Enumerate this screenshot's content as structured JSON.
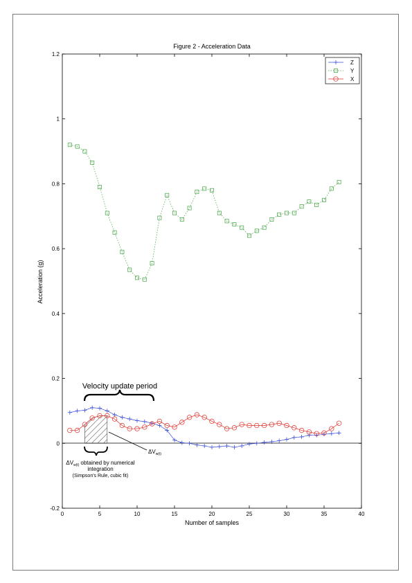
{
  "chart_data": {
    "type": "line",
    "title": "Figure 2 - Acceleration Data",
    "xlabel": "Number of samples",
    "ylabel": "Acceleration (g)",
    "xlim": [
      0,
      40
    ],
    "ylim": [
      -0.2,
      1.2
    ],
    "xticks": [
      0,
      5,
      10,
      15,
      20,
      25,
      30,
      35,
      40
    ],
    "yticks": [
      -0.2,
      0,
      0.2,
      0.4,
      0.6,
      0.8,
      1,
      1.2
    ],
    "xtick_labels": [
      "0",
      "5",
      "10",
      "15",
      "20",
      "25",
      "30",
      "35",
      "40"
    ],
    "ytick_labels": [
      "-0.2",
      "0",
      "0.2",
      "0.4",
      "0.6",
      "0.8",
      "1",
      "1.2"
    ],
    "grid": false,
    "legend_position": "top-right",
    "series": [
      {
        "name": "Z",
        "marker": "plus",
        "color": "#3b4fd8",
        "x": [
          1,
          2,
          3,
          4,
          5,
          6,
          7,
          8,
          9,
          10,
          11,
          12,
          13,
          14,
          15,
          16,
          17,
          18,
          19,
          20,
          21,
          22,
          23,
          24,
          25,
          26,
          27,
          28,
          29,
          30,
          31,
          32,
          33,
          34,
          35,
          36,
          37
        ],
        "y": [
          0.095,
          0.1,
          0.102,
          0.11,
          0.108,
          0.1,
          0.088,
          0.08,
          0.075,
          0.07,
          0.067,
          0.062,
          0.055,
          0.04,
          0.01,
          0.002,
          0.0,
          -0.005,
          -0.008,
          -0.012,
          -0.01,
          -0.008,
          -0.012,
          -0.008,
          -0.002,
          0.0,
          0.003,
          0.005,
          0.008,
          0.012,
          0.018,
          0.02,
          0.025,
          0.025,
          0.028,
          0.03,
          0.032
        ]
      },
      {
        "name": "Y",
        "marker": "square",
        "color": "#3da23d",
        "x": [
          1,
          2,
          3,
          4,
          5,
          6,
          7,
          8,
          9,
          10,
          11,
          12,
          13,
          14,
          15,
          16,
          17,
          18,
          19,
          20,
          21,
          22,
          23,
          24,
          25,
          26,
          27,
          28,
          29,
          30,
          31,
          32,
          33,
          34,
          35,
          36,
          37
        ],
        "y": [
          0.92,
          0.915,
          0.9,
          0.865,
          0.79,
          0.71,
          0.65,
          0.59,
          0.535,
          0.51,
          0.505,
          0.555,
          0.695,
          0.765,
          0.71,
          0.69,
          0.725,
          0.775,
          0.785,
          0.78,
          0.71,
          0.685,
          0.675,
          0.665,
          0.64,
          0.655,
          0.665,
          0.69,
          0.705,
          0.71,
          0.71,
          0.73,
          0.745,
          0.735,
          0.75,
          0.785,
          0.805
        ]
      },
      {
        "name": "X",
        "marker": "circle",
        "color": "#e0302a",
        "x": [
          1,
          2,
          3,
          4,
          5,
          6,
          7,
          8,
          9,
          10,
          11,
          12,
          13,
          14,
          15,
          16,
          17,
          18,
          19,
          20,
          21,
          22,
          23,
          24,
          25,
          26,
          27,
          28,
          29,
          30,
          31,
          32,
          33,
          34,
          35,
          36,
          37
        ],
        "y": [
          0.04,
          0.04,
          0.058,
          0.078,
          0.085,
          0.085,
          0.075,
          0.055,
          0.045,
          0.045,
          0.05,
          0.06,
          0.068,
          0.055,
          0.05,
          0.065,
          0.08,
          0.088,
          0.08,
          0.068,
          0.058,
          0.045,
          0.048,
          0.058,
          0.055,
          0.055,
          0.055,
          0.058,
          0.062,
          0.055,
          0.048,
          0.04,
          0.035,
          0.03,
          0.032,
          0.045,
          0.062
        ]
      }
    ],
    "annotations": {
      "velocity_update_period": "Velocity update period",
      "delta_v_label": "ΔV",
      "delta_v_subscript": "w(t)",
      "integration_label": "obtained by numerical",
      "integration_label_line2": "integration",
      "integration_note": "(Simpson's Rule, cubic fit)",
      "hatched_x_range": [
        3,
        6
      ]
    }
  }
}
